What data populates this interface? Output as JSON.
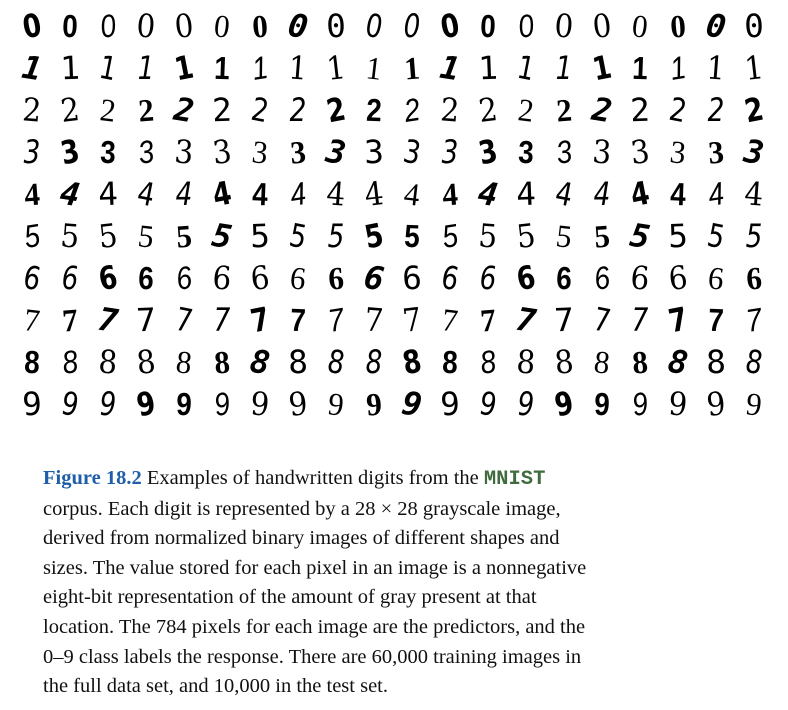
{
  "figure": {
    "grid": {
      "columns": 20,
      "rows": [
        {
          "label": "0",
          "digits": [
            "0",
            "0",
            "0",
            "0",
            "0",
            "0",
            "0",
            "0",
            "0",
            "0",
            "0",
            "0",
            "0",
            "0",
            "0",
            "0",
            "0",
            "0",
            "0",
            "0"
          ]
        },
        {
          "label": "1",
          "digits": [
            "1",
            "1",
            "1",
            "1",
            "1",
            "1",
            "1",
            "1",
            "1",
            "1",
            "1",
            "1",
            "1",
            "1",
            "1",
            "1",
            "1",
            "1",
            "1",
            "1"
          ]
        },
        {
          "label": "2",
          "digits": [
            "2",
            "2",
            "2",
            "2",
            "2",
            "2",
            "2",
            "2",
            "2",
            "2",
            "2",
            "2",
            "2",
            "2",
            "2",
            "2",
            "2",
            "2",
            "2",
            "2"
          ]
        },
        {
          "label": "3",
          "digits": [
            "3",
            "3",
            "3",
            "3",
            "3",
            "3",
            "3",
            "3",
            "3",
            "3",
            "3",
            "3",
            "3",
            "3",
            "3",
            "3",
            "3",
            "3",
            "3",
            "3"
          ]
        },
        {
          "label": "4",
          "digits": [
            "4",
            "4",
            "4",
            "4",
            "4",
            "4",
            "4",
            "4",
            "4",
            "4",
            "4",
            "4",
            "4",
            "4",
            "4",
            "4",
            "4",
            "4",
            "4",
            "4"
          ]
        },
        {
          "label": "5",
          "digits": [
            "5",
            "5",
            "5",
            "5",
            "5",
            "5",
            "5",
            "5",
            "5",
            "5",
            "5",
            "5",
            "5",
            "5",
            "5",
            "5",
            "5",
            "5",
            "5",
            "5"
          ]
        },
        {
          "label": "6",
          "digits": [
            "6",
            "6",
            "6",
            "6",
            "6",
            "6",
            "6",
            "6",
            "6",
            "6",
            "6",
            "6",
            "6",
            "6",
            "6",
            "6",
            "6",
            "6",
            "6",
            "6"
          ]
        },
        {
          "label": "7",
          "digits": [
            "7",
            "7",
            "7",
            "7",
            "7",
            "7",
            "7",
            "7",
            "7",
            "7",
            "7",
            "7",
            "7",
            "7",
            "7",
            "7",
            "7",
            "7",
            "7",
            "7"
          ]
        },
        {
          "label": "8",
          "digits": [
            "8",
            "8",
            "8",
            "8",
            "8",
            "8",
            "8",
            "8",
            "8",
            "8",
            "8",
            "8",
            "8",
            "8",
            "8",
            "8",
            "8",
            "8",
            "8",
            "8"
          ]
        },
        {
          "label": "9",
          "digits": [
            "9",
            "9",
            "9",
            "9",
            "9",
            "9",
            "9",
            "9",
            "9",
            "9",
            "9",
            "9",
            "9",
            "9",
            "9",
            "9",
            "9",
            "9",
            "9",
            "9"
          ]
        }
      ]
    },
    "caption": {
      "label": "Figure 18.2",
      "line1_pre": " Examples of handwritten digits from the ",
      "dataset": "MNIST",
      "line2": "corpus. Each digit is represented by a 28 × 28 grayscale image,",
      "line3": "derived from normalized binary images of different shapes and",
      "line4": "sizes. The value stored for each pixel in an image is a nonnegative",
      "line5": "eight-bit representation of the amount of gray present at that",
      "line6": "location. The 784 pixels for each image are the predictors, and the",
      "line7": "0–9 class labels the response. There are 60,000 training images in",
      "line8": "the full data set, and 10,000 in the test set."
    },
    "colors": {
      "label": "#1f5ea8",
      "dataset": "#3f6b3f",
      "text": "#111111",
      "digit": "#000000"
    }
  }
}
